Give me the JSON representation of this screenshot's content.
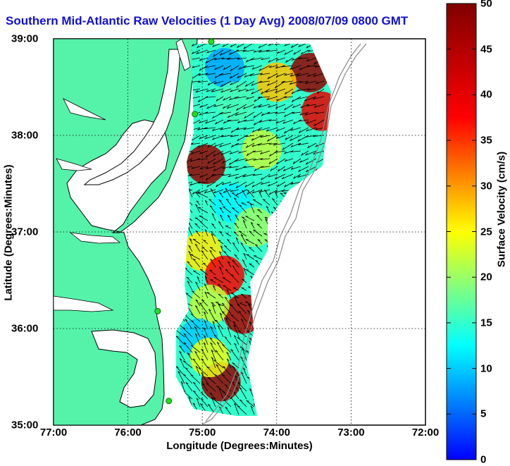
{
  "title": "Southern Mid-Atlantic Raw Velocities (1 Day Avg) 2008/07/09 0800 GMT",
  "xlabel": "Longitude (Degrees:Minutes)",
  "ylabel": "Latitude (Degrees:Minutes)",
  "xticks": [
    "77:00",
    "76:00",
    "75:00",
    "74:00",
    "73:00",
    "72:00"
  ],
  "yticks": [
    "39:00",
    "38:00",
    "37:00",
    "36:00",
    "35:00"
  ],
  "colorbar": {
    "label": "Surface Velocity (cm/s)",
    "ticks": [
      "0",
      "5",
      "10",
      "15",
      "20",
      "25",
      "30",
      "35",
      "40",
      "45",
      "50"
    ],
    "min": 0,
    "max": 50
  },
  "colors": {
    "land": "#55f2aa",
    "title": "#1010d8",
    "coast": "#000000",
    "stations": "#22dd22"
  },
  "chart_data": {
    "type": "heatmap",
    "title": "Southern Mid-Atlantic Raw Velocities (1 Day Avg) 2008/07/09 0800 GMT",
    "xlabel": "Longitude (Degrees:Minutes)",
    "ylabel": "Latitude (Degrees:Minutes)",
    "xlim": [
      -77,
      -72
    ],
    "ylim": [
      35,
      39
    ],
    "grid": true,
    "value_label": "Surface Velocity (cm/s)",
    "vmin": 0,
    "vmax": 50,
    "stations": [
      {
        "lon": -74.88,
        "lat": 38.97
      },
      {
        "lon": -75.1,
        "lat": 38.22
      },
      {
        "lon": -75.6,
        "lat": 36.18
      },
      {
        "lon": -75.45,
        "lat": 35.25
      }
    ],
    "velocity_blobs": [
      {
        "lon": -74.7,
        "lat": 38.7,
        "speed": 8
      },
      {
        "lon": -74.55,
        "lat": 38.35,
        "speed": 16
      },
      {
        "lon": -73.55,
        "lat": 38.65,
        "speed": 48
      },
      {
        "lon": -73.4,
        "lat": 38.25,
        "speed": 40
      },
      {
        "lon": -74.0,
        "lat": 38.55,
        "speed": 28
      },
      {
        "lon": -74.95,
        "lat": 37.7,
        "speed": 48
      },
      {
        "lon": -74.2,
        "lat": 37.85,
        "speed": 22
      },
      {
        "lon": -74.6,
        "lat": 37.3,
        "speed": 12
      },
      {
        "lon": -74.3,
        "lat": 37.05,
        "speed": 20
      },
      {
        "lon": -75.0,
        "lat": 36.8,
        "speed": 26
      },
      {
        "lon": -74.7,
        "lat": 36.55,
        "speed": 38
      },
      {
        "lon": -74.45,
        "lat": 36.15,
        "speed": 45
      },
      {
        "lon": -74.9,
        "lat": 36.25,
        "speed": 22
      },
      {
        "lon": -75.05,
        "lat": 35.9,
        "speed": 10
      },
      {
        "lon": -74.75,
        "lat": 35.45,
        "speed": 48
      },
      {
        "lon": -74.9,
        "lat": 35.7,
        "speed": 24
      }
    ]
  }
}
